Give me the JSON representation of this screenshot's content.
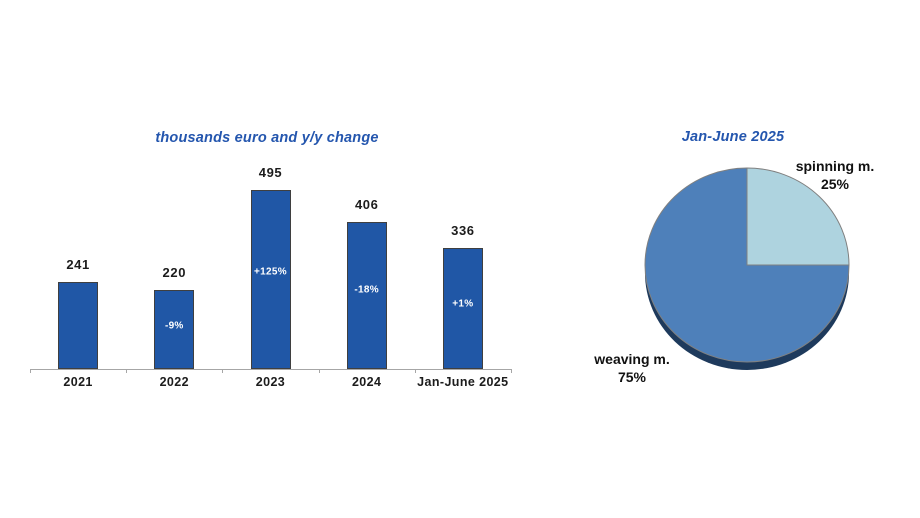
{
  "chart_data": [
    {
      "type": "bar",
      "title": "thousands euro and y/y change",
      "categories": [
        "2021",
        "2022",
        "2023",
        "2024",
        "Jan-June 2025"
      ],
      "values": [
        241,
        220,
        495,
        406,
        336
      ],
      "bar_labels": [
        "241",
        "220",
        "495",
        "406",
        "336"
      ],
      "change_labels": [
        null,
        "-9%",
        "+125%",
        "-18%",
        "+1%"
      ],
      "xlabel": "",
      "ylabel": "",
      "ylim": [
        0,
        550
      ],
      "grid": false,
      "legend": false,
      "units": "thousands euro"
    },
    {
      "type": "pie",
      "title": "Jan-June 2025",
      "slices": [
        {
          "label": "spinning m.",
          "value": 25,
          "value_label": "25%",
          "color": "#aed3df"
        },
        {
          "label": "weaving m.",
          "value": 75,
          "value_label": "75%",
          "color": "#4e80ba"
        }
      ],
      "start_angle": "top",
      "direction": "clockwise",
      "legend": false
    }
  ],
  "style": {
    "background": "#ffffff",
    "title_color": "#2456ae",
    "bar_fill": "#2057a6",
    "bar_border": "#3f3f3f",
    "axis_color": "#a6a6a6",
    "label_color": "#1c1c1c",
    "change_label_color": "#ffffff",
    "pie_shadow": "#1e3a5c",
    "pie_stroke": "#808080"
  }
}
